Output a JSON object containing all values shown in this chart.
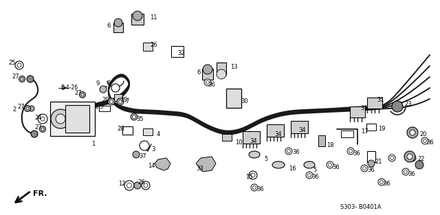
{
  "background_color": "#ffffff",
  "line_color": "#1a1a1a",
  "fig_width": 6.4,
  "fig_height": 3.13,
  "dpi": 100,
  "diagram_ref": "S303- B0401A"
}
